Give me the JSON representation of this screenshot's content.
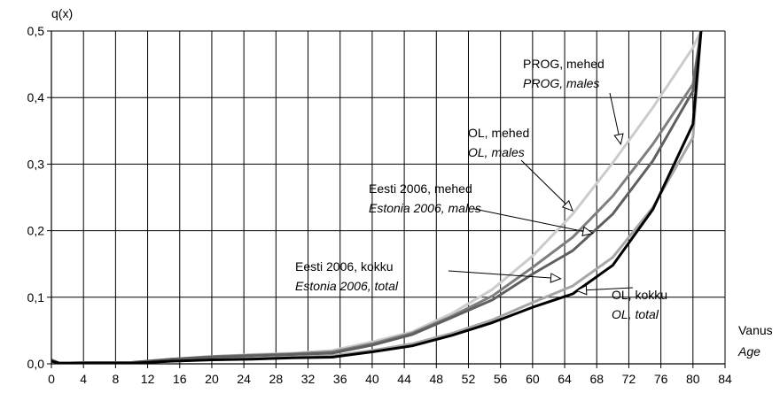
{
  "chart_data": {
    "type": "line",
    "title": "",
    "ylabel": "q(x)",
    "xlabel": "Vanus",
    "xlabel_en": "Age",
    "xlim": [
      0,
      84
    ],
    "ylim": [
      0,
      0.5
    ],
    "xticks": [
      0,
      4,
      8,
      12,
      16,
      20,
      24,
      28,
      32,
      36,
      40,
      44,
      48,
      52,
      56,
      60,
      64,
      68,
      72,
      76,
      80,
      84
    ],
    "xtick_labels": [
      "0",
      "4",
      "8",
      "12",
      "16",
      "20",
      "24",
      "28",
      "32",
      "36",
      "40",
      "44",
      "48",
      "52",
      "56",
      "60",
      "64",
      "68",
      "72",
      "76",
      "80",
      "84"
    ],
    "yticks": [
      0,
      0.1,
      0.2,
      0.3,
      0.4,
      0.5
    ],
    "ytick_labels": [
      "0,0",
      "0,1",
      "0,2",
      "0,3",
      "0,4",
      "0,5"
    ],
    "grid": true,
    "series": [
      {
        "name": "PROG, mehed",
        "name_en": "PROG, males",
        "color": "#cccccc",
        "x": [
          0,
          1,
          5,
          10,
          15,
          20,
          25,
          30,
          35,
          40,
          45,
          50,
          55,
          60,
          65,
          70,
          75,
          80,
          81
        ],
        "y": [
          0.005,
          0.001,
          0.002,
          0.002,
          0.007,
          0.011,
          0.014,
          0.016,
          0.02,
          0.033,
          0.048,
          0.076,
          0.112,
          0.162,
          0.225,
          0.302,
          0.385,
          0.475,
          0.5
        ]
      },
      {
        "name": "OL, mehed",
        "name_en": "OL, males",
        "color": "#7f7f7f",
        "x": [
          0,
          1,
          5,
          10,
          15,
          20,
          25,
          30,
          35,
          40,
          45,
          50,
          55,
          60,
          65,
          70,
          75,
          80,
          81
        ],
        "y": [
          0.005,
          0.001,
          0.002,
          0.002,
          0.007,
          0.011,
          0.013,
          0.015,
          0.018,
          0.03,
          0.046,
          0.072,
          0.102,
          0.145,
          0.19,
          0.252,
          0.33,
          0.42,
          0.5
        ]
      },
      {
        "name": "Eesti 2006, mehed",
        "name_en": "Estonia 2006, males",
        "color": "#5f5f5f",
        "x": [
          0,
          1,
          5,
          10,
          15,
          20,
          25,
          30,
          35,
          40,
          45,
          50,
          55,
          60,
          65,
          70,
          75,
          80,
          81
        ],
        "y": [
          0.006,
          0.001,
          0.002,
          0.002,
          0.007,
          0.01,
          0.012,
          0.014,
          0.016,
          0.028,
          0.044,
          0.07,
          0.096,
          0.135,
          0.17,
          0.225,
          0.305,
          0.41,
          0.5
        ]
      },
      {
        "name": "OL, kokku",
        "name_en": "OL, total",
        "color": "#a6a6a6",
        "x": [
          0,
          1,
          5,
          10,
          15,
          20,
          25,
          30,
          35,
          40,
          45,
          50,
          55,
          60,
          65,
          70,
          75,
          80,
          81
        ],
        "y": [
          0.004,
          0.001,
          0.001,
          0.001,
          0.004,
          0.006,
          0.008,
          0.01,
          0.012,
          0.02,
          0.03,
          0.046,
          0.066,
          0.092,
          0.117,
          0.16,
          0.235,
          0.34,
          0.5
        ]
      },
      {
        "name": "Eesti 2006, kokku",
        "name_en": "Estonia 2006, total",
        "color": "#000000",
        "x": [
          0,
          1,
          5,
          10,
          15,
          20,
          25,
          30,
          35,
          40,
          45,
          50,
          55,
          60,
          65,
          70,
          75,
          80,
          81
        ],
        "y": [
          0.004,
          0.001,
          0.001,
          0.001,
          0.004,
          0.006,
          0.007,
          0.009,
          0.01,
          0.018,
          0.027,
          0.043,
          0.062,
          0.085,
          0.105,
          0.148,
          0.232,
          0.36,
          0.5
        ]
      }
    ],
    "annotations": [
      {
        "line1": "PROG, mehed",
        "line2": "PROG, males",
        "series": 0,
        "target_x": 71,
        "target_y": 0.33
      },
      {
        "line1": "OL, mehed",
        "line2": "OL, males",
        "series": 1,
        "target_x": 65,
        "target_y": 0.23
      },
      {
        "line1": "Eesti 2006, mehed",
        "line2": "Estonia 2006, males",
        "series": 2,
        "target_x": 67.5,
        "target_y": 0.196
      },
      {
        "line1": "Eesti 2006, kokku",
        "line2": "Estonia  2006, total",
        "series": 4,
        "target_x": 63.5,
        "target_y": 0.128
      },
      {
        "line1": "OL, kokku",
        "line2": "OL, total",
        "series": 3,
        "target_x": 65.5,
        "target_y": 0.11
      }
    ]
  }
}
